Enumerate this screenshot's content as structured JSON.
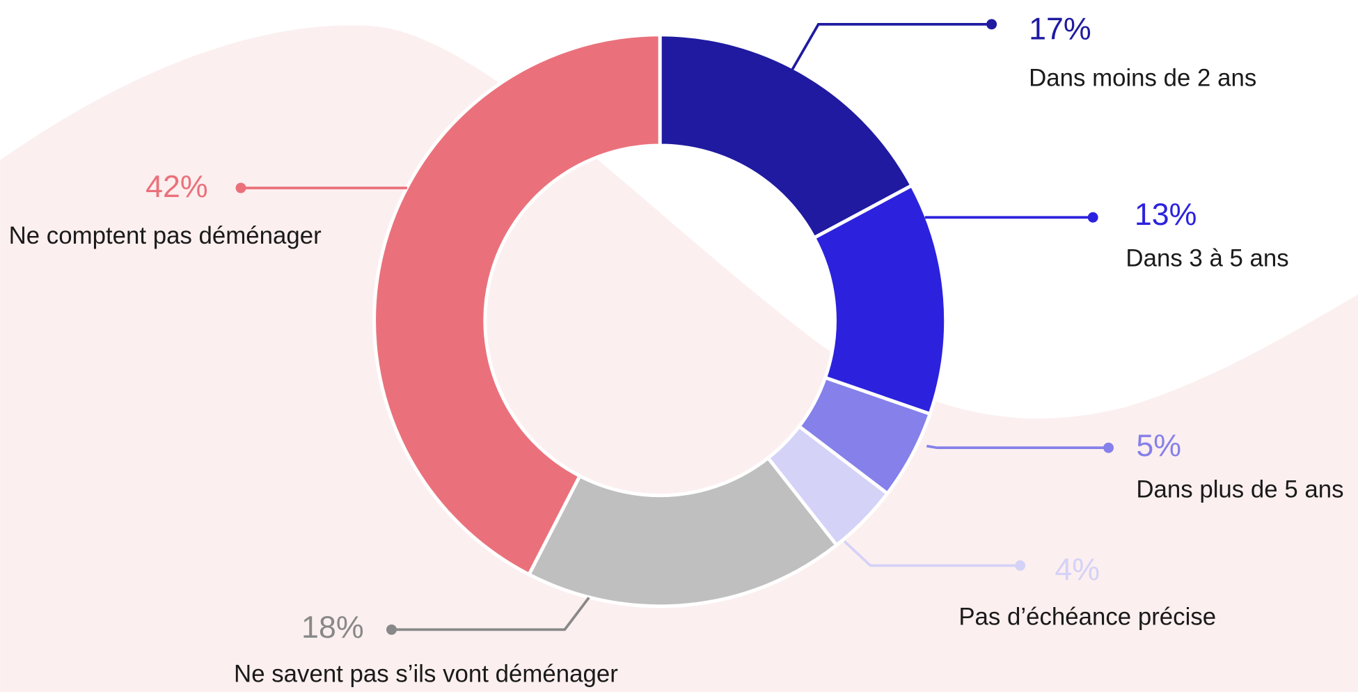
{
  "chart_data": {
    "type": "pie",
    "categories": [
      "Dans moins de 2 ans",
      "Dans 3 à 5 ans",
      "Dans plus de 5 ans",
      "Pas d’échéance précise",
      "Ne savent pas s’ils vont déménager",
      "Ne comptent pas déménager"
    ],
    "values": [
      17,
      13,
      5,
      4,
      18,
      42
    ],
    "value_labels": [
      "17%",
      "13%",
      "5%",
      "4%",
      "18%",
      "42%"
    ],
    "colors": [
      "#1f1aa0",
      "#2c22dd",
      "#8580ea",
      "#d4d2f7",
      "#bfbfbf",
      "#ea717b"
    ]
  }
}
